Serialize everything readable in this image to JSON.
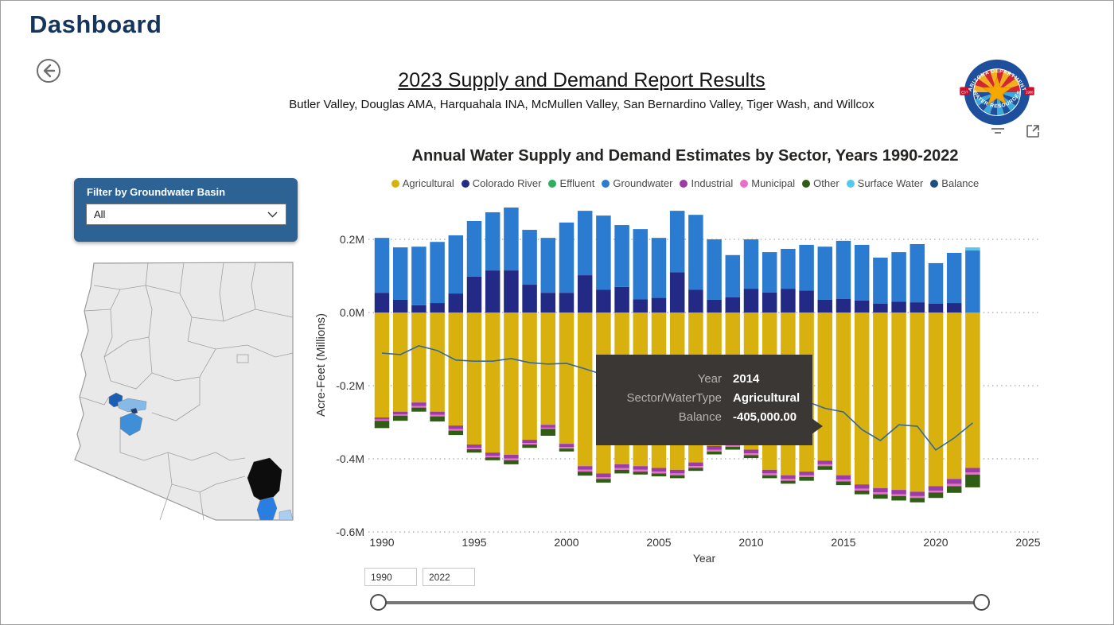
{
  "window": {
    "title": "Dashboard"
  },
  "header": {
    "report_title": "2023 Supply and Demand Report Results",
    "report_subtitle": "Butler Valley, Douglas AMA, Harquahala INA, McMullen Valley, San Bernardino Valley, Tiger Wash, and Willcox"
  },
  "logo": {
    "ring_text_top": "ARIZONA DEPARTMENT",
    "ring_text_bottom": "WATER RESOURCES",
    "est_label": "EST",
    "est_year": "1980",
    "colors": {
      "ring": "#1d4f9c",
      "ray_red": "#d22630",
      "ray_yellow": "#f2b01e",
      "ray_blue_dark": "#1d4f9c",
      "ray_blue_light": "#3da8dc",
      "star": "#f5a800",
      "ribbon": "#c8102e"
    }
  },
  "filter_panel": {
    "label": "Filter by Groundwater Basin",
    "dropdown_value": "All",
    "panel_color": "#2d6294"
  },
  "map": {
    "state": "Arizona",
    "basins": [
      {
        "name": "Butler Valley",
        "color": "#1a5db5"
      },
      {
        "name": "McMullen Valley",
        "color": "#85b9e8"
      },
      {
        "name": "Tiger Wash",
        "color": "#1b3f77"
      },
      {
        "name": "Harquahala INA",
        "color": "#3f8fd8"
      },
      {
        "name": "Willcox",
        "color": "#0d0d0d"
      },
      {
        "name": "Douglas AMA",
        "color": "#2a7de1"
      },
      {
        "name": "San Bernardino Valley",
        "color": "#a9cef2"
      }
    ]
  },
  "chart": {
    "title": "Annual Water Supply and Demand Estimates by Sector, Years 1990-2022",
    "y_axis_label": "Acre-Feet (Millions)",
    "x_axis_label": "Year"
  },
  "chart_data": {
    "type": "bar",
    "subtype": "stacked-with-line",
    "title": "Annual Water Supply and Demand Estimates by Sector, Years 1990-2022",
    "xlabel": "Year",
    "ylabel": "Acre-Feet (Millions)",
    "ylim": [
      -0.6,
      0.3
    ],
    "grid": "dotted-horizontal",
    "legend_position": "top-center",
    "y_ticks": [
      {
        "value": 0.2,
        "label": "0.2M"
      },
      {
        "value": 0.0,
        "label": "0.0M"
      },
      {
        "value": -0.2,
        "label": "-0.2M"
      },
      {
        "value": -0.4,
        "label": "-0.4M"
      },
      {
        "value": -0.6,
        "label": "-0.6M"
      }
    ],
    "x_ticks": [
      1990,
      1995,
      2000,
      2005,
      2010,
      2015,
      2020,
      2025
    ],
    "years": [
      1990,
      1991,
      1992,
      1993,
      1994,
      1995,
      1996,
      1997,
      1998,
      1999,
      2000,
      2001,
      2002,
      2003,
      2004,
      2005,
      2006,
      2007,
      2008,
      2009,
      2010,
      2011,
      2012,
      2013,
      2014,
      2015,
      2016,
      2017,
      2018,
      2019,
      2020,
      2021,
      2022
    ],
    "positive_stack_order": [
      "Colorado River",
      "Groundwater",
      "Surface Water"
    ],
    "negative_stack_order": [
      "Agricultural",
      "Industrial",
      "Municipal",
      "Other"
    ],
    "series": [
      {
        "name": "Agricultural",
        "color": "#d8b10e",
        "values": [
          -0.287,
          -0.271,
          -0.246,
          -0.271,
          -0.309,
          -0.361,
          -0.383,
          -0.389,
          -0.348,
          -0.307,
          -0.359,
          -0.42,
          -0.44,
          -0.415,
          -0.42,
          -0.425,
          -0.43,
          -0.41,
          -0.365,
          -0.352,
          -0.375,
          -0.43,
          -0.445,
          -0.435,
          -0.405,
          -0.445,
          -0.47,
          -0.48,
          -0.485,
          -0.49,
          -0.475,
          -0.455,
          -0.425
        ]
      },
      {
        "name": "Colorado River",
        "color": "#222a85",
        "values": [
          0.054,
          0.035,
          0.02,
          0.026,
          0.052,
          0.098,
          0.115,
          0.115,
          0.076,
          0.054,
          0.054,
          0.102,
          0.062,
          0.07,
          0.036,
          0.04,
          0.11,
          0.062,
          0.035,
          0.042,
          0.065,
          0.055,
          0.065,
          0.06,
          0.035,
          0.037,
          0.033,
          0.024,
          0.03,
          0.028,
          0.024,
          0.026,
          0.0
        ]
      },
      {
        "name": "Effluent",
        "color": "#2eaf5d",
        "values": [
          0,
          0,
          0,
          0,
          0,
          0,
          0,
          0,
          0,
          0,
          0,
          0,
          0,
          0,
          0,
          0,
          0,
          0,
          0,
          0,
          0,
          0,
          0,
          0,
          0,
          0,
          0,
          0,
          0,
          0,
          0,
          0,
          0
        ]
      },
      {
        "name": "Groundwater",
        "color": "#2b7bd0",
        "values": [
          0.15,
          0.143,
          0.16,
          0.167,
          0.159,
          0.152,
          0.159,
          0.172,
          0.15,
          0.15,
          0.192,
          0.176,
          0.203,
          0.169,
          0.192,
          0.164,
          0.168,
          0.205,
          0.165,
          0.115,
          0.135,
          0.11,
          0.109,
          0.125,
          0.145,
          0.159,
          0.152,
          0.126,
          0.135,
          0.159,
          0.111,
          0.137,
          0.17
        ]
      },
      {
        "name": "Industrial",
        "color": "#9b3da4",
        "values": [
          -0.006,
          -0.008,
          -0.01,
          -0.009,
          -0.01,
          -0.009,
          -0.009,
          -0.01,
          -0.009,
          -0.008,
          -0.009,
          -0.01,
          -0.01,
          -0.01,
          -0.01,
          -0.01,
          -0.01,
          -0.01,
          -0.01,
          -0.01,
          -0.01,
          -0.01,
          -0.01,
          -0.01,
          -0.01,
          -0.012,
          -0.012,
          -0.012,
          -0.012,
          -0.012,
          -0.012,
          -0.014,
          -0.012
        ]
      },
      {
        "name": "Municipal",
        "color": "#eb6fc8",
        "values": [
          -0.003,
          -0.003,
          -0.004,
          -0.004,
          -0.004,
          -0.004,
          -0.004,
          -0.005,
          -0.004,
          -0.003,
          -0.004,
          -0.005,
          -0.005,
          -0.005,
          -0.005,
          -0.005,
          -0.005,
          -0.005,
          -0.005,
          -0.005,
          -0.005,
          -0.005,
          -0.005,
          -0.005,
          -0.005,
          -0.005,
          -0.005,
          -0.005,
          -0.005,
          -0.005,
          -0.005,
          -0.006,
          -0.006
        ]
      },
      {
        "name": "Other",
        "color": "#2f5d13",
        "values": [
          -0.02,
          -0.014,
          -0.011,
          -0.014,
          -0.012,
          -0.009,
          -0.008,
          -0.011,
          -0.009,
          -0.019,
          -0.008,
          -0.011,
          -0.01,
          -0.01,
          -0.008,
          -0.008,
          -0.008,
          -0.008,
          -0.008,
          -0.008,
          -0.008,
          -0.008,
          -0.008,
          -0.01,
          -0.01,
          -0.01,
          -0.01,
          -0.012,
          -0.012,
          -0.012,
          -0.015,
          -0.018,
          -0.035
        ]
      },
      {
        "name": "Surface Water",
        "color": "#55c8f0",
        "values": [
          0,
          0,
          0,
          0,
          0,
          0,
          0,
          0,
          0,
          0,
          0,
          0,
          0,
          0,
          0,
          0,
          0,
          0,
          0,
          0,
          0,
          0,
          0,
          0,
          0,
          0,
          0,
          0,
          0,
          0,
          0,
          0,
          0.008
        ]
      },
      {
        "name": "Balance",
        "color": "#1b4f82",
        "type": "line",
        "values": [
          -0.111,
          -0.115,
          -0.091,
          -0.104,
          -0.13,
          -0.133,
          -0.133,
          -0.126,
          -0.137,
          -0.141,
          -0.139,
          -0.154,
          -0.17,
          -0.19,
          -0.21,
          -0.22,
          -0.215,
          -0.225,
          -0.235,
          -0.24,
          -0.245,
          -0.25,
          -0.252,
          -0.243,
          -0.262,
          -0.272,
          -0.32,
          -0.35,
          -0.307,
          -0.311,
          -0.376,
          -0.343,
          -0.302
        ]
      }
    ]
  },
  "tooltip": {
    "rows": [
      {
        "label": "Year",
        "value": "2014"
      },
      {
        "label": "Sector/WaterType",
        "value": "Agricultural"
      },
      {
        "label": "Balance",
        "value": "-405,000.00"
      }
    ]
  },
  "slider": {
    "start": "1990",
    "end": "2022"
  }
}
